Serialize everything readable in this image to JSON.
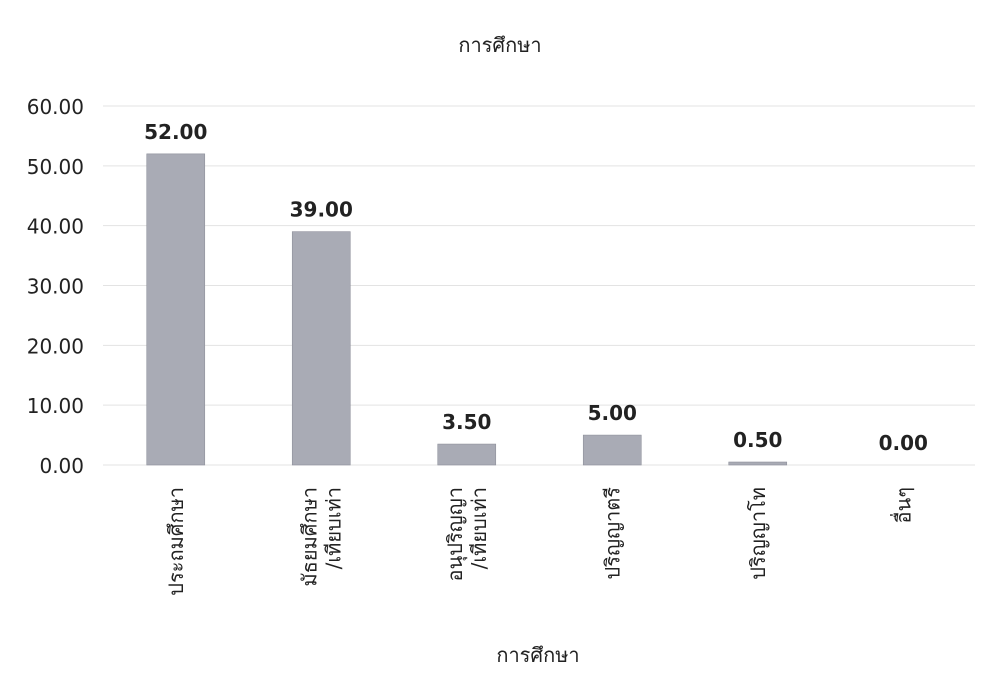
{
  "chart_data": {
    "type": "bar",
    "title": "การศึกษา",
    "xlabel": "การศึกษา",
    "ylabel": "",
    "categories": [
      [
        "ประถมศึกษา"
      ],
      [
        "มัธยมศึกษา",
        "/เทียบเท่า"
      ],
      [
        "อนุปริญญา",
        "/เทียบเท่า"
      ],
      [
        "ปริญญาตรี"
      ],
      [
        "ปริญญาโท"
      ],
      [
        "อื่นๆ"
      ]
    ],
    "values": [
      52.0,
      39.0,
      3.5,
      5.0,
      0.5,
      0.0
    ],
    "data_labels": [
      "52.00",
      "39.00",
      "3.50",
      "5.00",
      "0.50",
      "0.00"
    ],
    "ylim": [
      0,
      60
    ],
    "yticks": [
      "0.00",
      "10.00",
      "20.00",
      "30.00",
      "40.00",
      "50.00",
      "60.00"
    ],
    "grid": true,
    "legend": "none",
    "colors": {
      "bar": "#a9abb5",
      "bar_edge": "#8e909b",
      "grid": "#e3e3e3",
      "text": "#222222"
    }
  }
}
